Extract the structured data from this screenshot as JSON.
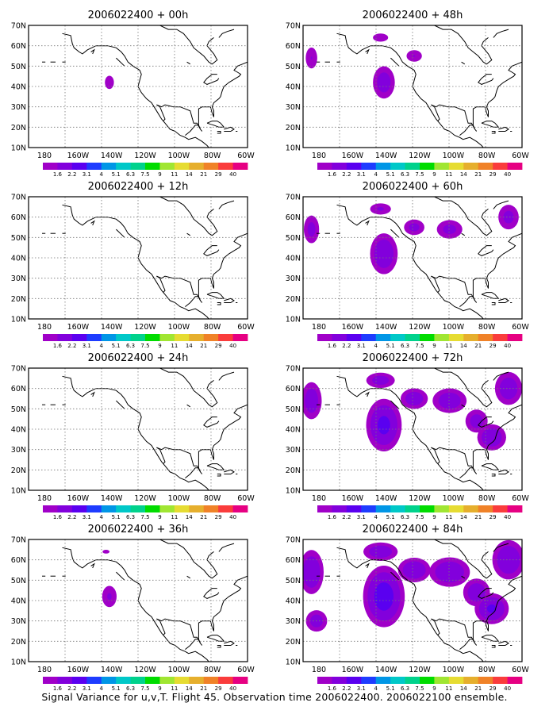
{
  "caption": "Signal Variance for u,v,T. Flight 45. Observation time 2006022400. 2006022100 ensemble.",
  "lat_labels": [
    "70N",
    "60N",
    "50N",
    "40N",
    "30N",
    "20N",
    "10N"
  ],
  "lon_labels": [
    "180",
    "160W",
    "140W",
    "120W",
    "100W",
    "80W",
    "60W"
  ],
  "colorbar": {
    "labels": [
      "1.6",
      "2.2",
      "3.1",
      "4",
      "5.1",
      "6.3",
      "7.5",
      "9",
      "11",
      "14",
      "21",
      "29",
      "40"
    ],
    "colors": [
      "#a000c8",
      "#8200dc",
      "#5a00f0",
      "#1e3cff",
      "#0096e6",
      "#00c8c8",
      "#00d28c",
      "#00dc00",
      "#a0e632",
      "#e6dc32",
      "#e6af2d",
      "#f08228",
      "#fa3c3c",
      "#e60082"
    ]
  },
  "panels": [
    {
      "title": "2006022400 + 00h",
      "spread": 0.05
    },
    {
      "title": "2006022400 + 12h",
      "spread": 0.0
    },
    {
      "title": "2006022400 + 24h",
      "spread": 0.0
    },
    {
      "title": "2006022400 + 36h",
      "spread": 0.2
    },
    {
      "title": "2006022400 + 48h",
      "spread": 0.4
    },
    {
      "title": "2006022400 + 60h",
      "spread": 0.55
    },
    {
      "title": "2006022400 + 72h",
      "spread": 0.75
    },
    {
      "title": "2006022400 + 84h",
      "spread": 0.9
    }
  ]
}
